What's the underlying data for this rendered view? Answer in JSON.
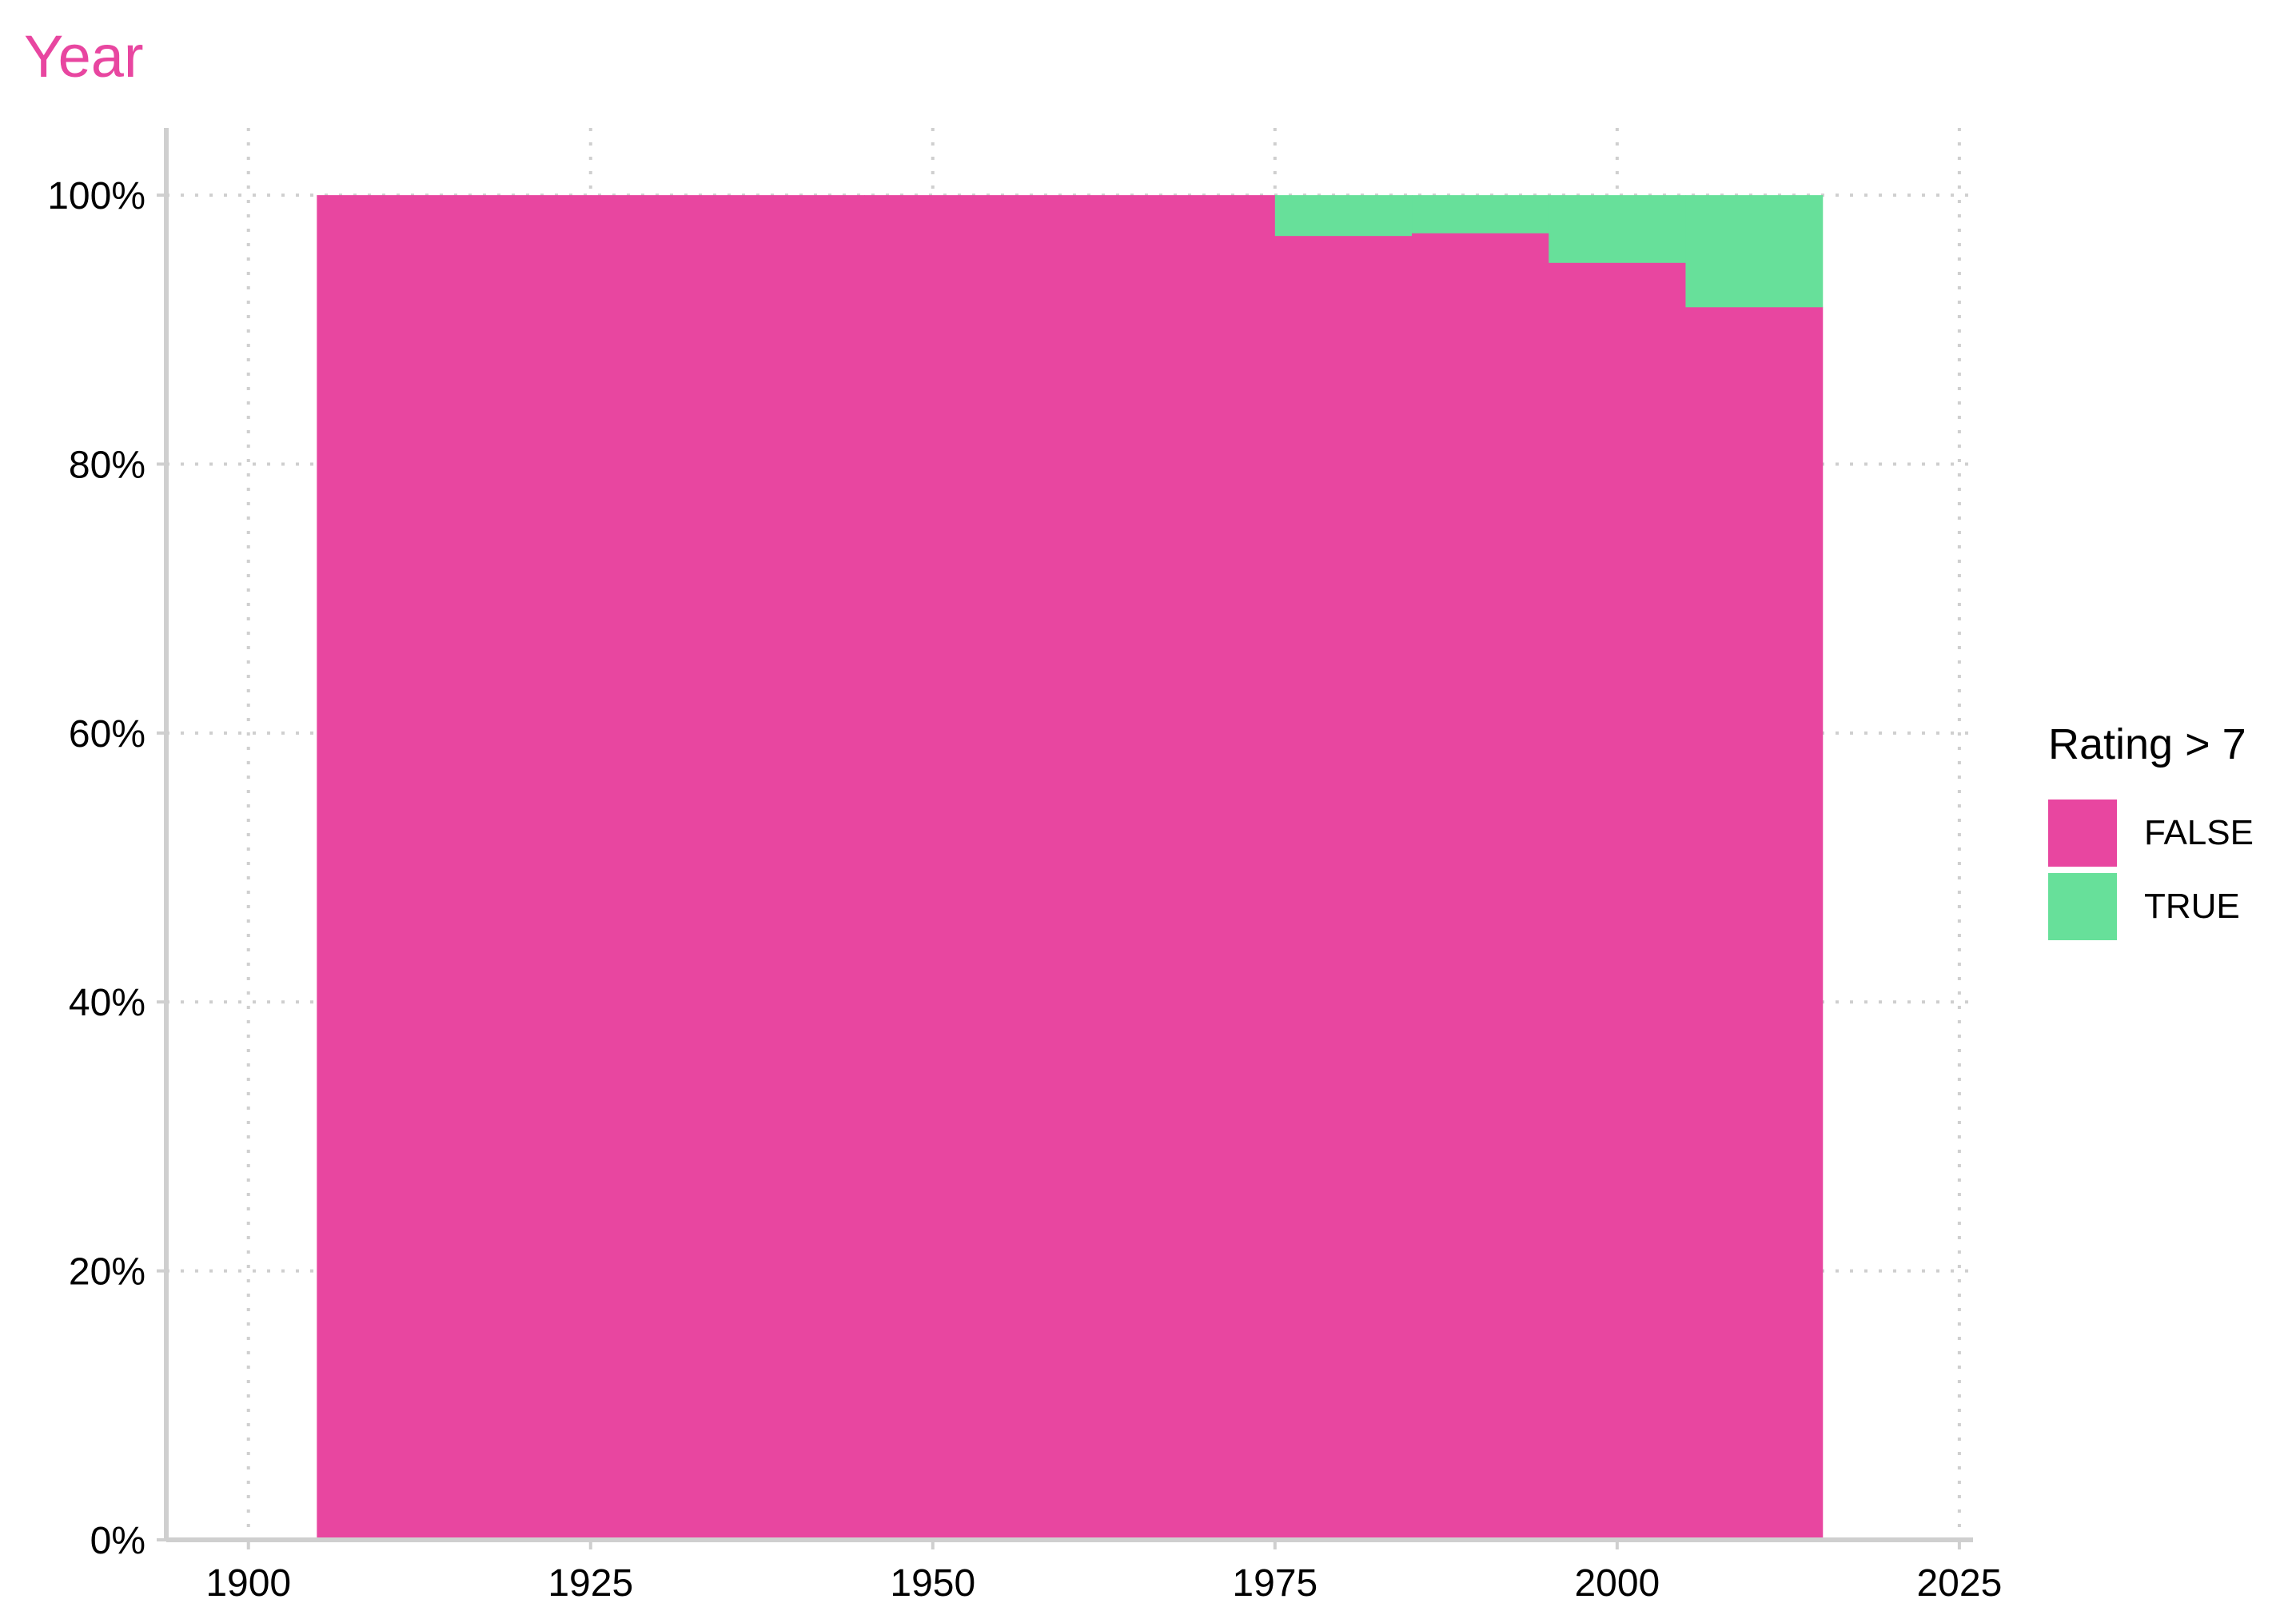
{
  "chart_data": {
    "type": "bar",
    "title": "Year",
    "xlabel": "",
    "ylabel": "",
    "xlim": [
      1894,
      2026
    ],
    "ylim": [
      0,
      1.05
    ],
    "x_ticks": [
      1900,
      1925,
      1950,
      1975,
      2000,
      2025
    ],
    "y_ticks": [
      0,
      0.2,
      0.4,
      0.6,
      0.8,
      1.0
    ],
    "y_tick_labels": [
      "0%",
      "20%",
      "40%",
      "60%",
      "80%",
      "100%"
    ],
    "grid": true,
    "bin_width": 10,
    "bins": [
      1910,
      1920,
      1930,
      1940,
      1950,
      1960,
      1970,
      1980,
      1990,
      2000,
      2010
    ],
    "series": [
      {
        "name": "FALSE",
        "color": "#E846A0",
        "values": [
          1,
          1,
          1,
          1,
          1,
          1,
          1,
          0.97,
          0.972,
          0.95,
          0.917
        ]
      },
      {
        "name": "TRUE",
        "color": "#67E09A",
        "values": [
          0,
          0,
          0,
          0,
          0,
          0,
          0,
          0.03,
          0.028,
          0.05,
          0.083
        ]
      }
    ],
    "legend": {
      "title": "Rating > 7",
      "position": "right"
    }
  }
}
